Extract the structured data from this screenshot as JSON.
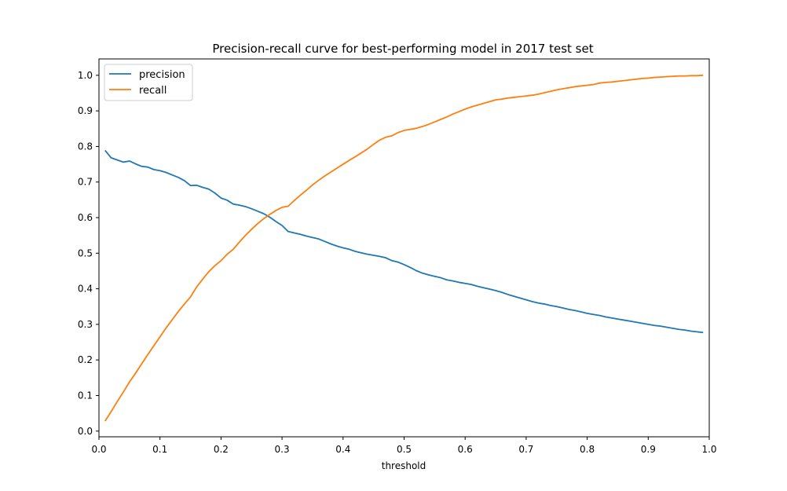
{
  "chart_data": {
    "type": "line",
    "title": "Precision-recall curve for best-performing model in 2017 test set",
    "xlabel": "threshold",
    "ylabel": "",
    "xlim": [
      0.0,
      1.0
    ],
    "ylim": [
      -0.016,
      1.046
    ],
    "x_ticks": [
      "0.0",
      "0.1",
      "0.2",
      "0.3",
      "0.4",
      "0.5",
      "0.6",
      "0.7",
      "0.8",
      "0.9",
      "1.0"
    ],
    "y_ticks": [
      "0.0",
      "0.1",
      "0.2",
      "0.3",
      "0.4",
      "0.5",
      "0.6",
      "0.7",
      "0.8",
      "0.9",
      "1.0"
    ],
    "grid": false,
    "legend_position": "top-left",
    "series": [
      {
        "name": "precision",
        "color": "#1f77b4",
        "x": [
          0.01,
          0.02,
          0.03,
          0.04,
          0.05,
          0.06,
          0.07,
          0.08,
          0.09,
          0.1,
          0.11,
          0.12,
          0.13,
          0.14,
          0.15,
          0.16,
          0.17,
          0.18,
          0.19,
          0.2,
          0.21,
          0.22,
          0.23,
          0.24,
          0.25,
          0.26,
          0.27,
          0.28,
          0.29,
          0.3,
          0.31,
          0.32,
          0.33,
          0.34,
          0.35,
          0.36,
          0.37,
          0.38,
          0.39,
          0.4,
          0.41,
          0.42,
          0.43,
          0.44,
          0.45,
          0.46,
          0.47,
          0.48,
          0.49,
          0.5,
          0.51,
          0.52,
          0.53,
          0.54,
          0.55,
          0.56,
          0.57,
          0.58,
          0.59,
          0.6,
          0.61,
          0.62,
          0.63,
          0.64,
          0.65,
          0.66,
          0.67,
          0.68,
          0.69,
          0.7,
          0.71,
          0.72,
          0.73,
          0.74,
          0.75,
          0.76,
          0.77,
          0.78,
          0.79,
          0.8,
          0.81,
          0.82,
          0.83,
          0.84,
          0.85,
          0.86,
          0.87,
          0.88,
          0.89,
          0.9,
          0.91,
          0.92,
          0.93,
          0.94,
          0.95,
          0.96,
          0.97,
          0.98,
          0.99
        ],
        "values": [
          0.789,
          0.768,
          0.762,
          0.756,
          0.759,
          0.751,
          0.744,
          0.742,
          0.735,
          0.732,
          0.727,
          0.72,
          0.713,
          0.704,
          0.69,
          0.691,
          0.685,
          0.68,
          0.669,
          0.655,
          0.649,
          0.638,
          0.635,
          0.631,
          0.625,
          0.618,
          0.611,
          0.601,
          0.589,
          0.578,
          0.561,
          0.557,
          0.553,
          0.548,
          0.544,
          0.54,
          0.533,
          0.526,
          0.52,
          0.515,
          0.511,
          0.505,
          0.501,
          0.497,
          0.494,
          0.491,
          0.487,
          0.479,
          0.475,
          0.468,
          0.46,
          0.451,
          0.444,
          0.439,
          0.435,
          0.431,
          0.425,
          0.422,
          0.418,
          0.415,
          0.412,
          0.407,
          0.403,
          0.399,
          0.395,
          0.39,
          0.384,
          0.379,
          0.374,
          0.369,
          0.364,
          0.36,
          0.357,
          0.353,
          0.35,
          0.346,
          0.342,
          0.339,
          0.335,
          0.331,
          0.328,
          0.325,
          0.321,
          0.318,
          0.315,
          0.312,
          0.309,
          0.306,
          0.303,
          0.3,
          0.297,
          0.295,
          0.292,
          0.289,
          0.286,
          0.284,
          0.281,
          0.279,
          0.277
        ]
      },
      {
        "name": "recall",
        "color": "#ff7f0e",
        "x": [
          0.01,
          0.02,
          0.03,
          0.04,
          0.05,
          0.06,
          0.07,
          0.08,
          0.09,
          0.1,
          0.11,
          0.12,
          0.13,
          0.14,
          0.15,
          0.16,
          0.17,
          0.18,
          0.19,
          0.2,
          0.21,
          0.22,
          0.23,
          0.24,
          0.25,
          0.26,
          0.27,
          0.28,
          0.29,
          0.3,
          0.31,
          0.32,
          0.33,
          0.34,
          0.35,
          0.36,
          0.37,
          0.38,
          0.39,
          0.4,
          0.41,
          0.42,
          0.43,
          0.44,
          0.45,
          0.46,
          0.47,
          0.48,
          0.49,
          0.5,
          0.51,
          0.52,
          0.53,
          0.54,
          0.55,
          0.56,
          0.57,
          0.58,
          0.59,
          0.6,
          0.61,
          0.62,
          0.63,
          0.64,
          0.65,
          0.66,
          0.67,
          0.68,
          0.69,
          0.7,
          0.71,
          0.72,
          0.73,
          0.74,
          0.75,
          0.76,
          0.77,
          0.78,
          0.79,
          0.8,
          0.81,
          0.82,
          0.83,
          0.84,
          0.85,
          0.86,
          0.87,
          0.88,
          0.89,
          0.9,
          0.91,
          0.92,
          0.93,
          0.94,
          0.95,
          0.96,
          0.97,
          0.98,
          0.99
        ],
        "values": [
          0.028,
          0.055,
          0.083,
          0.11,
          0.138,
          0.163,
          0.189,
          0.215,
          0.24,
          0.265,
          0.29,
          0.313,
          0.336,
          0.357,
          0.377,
          0.405,
          0.427,
          0.448,
          0.465,
          0.479,
          0.497,
          0.511,
          0.531,
          0.55,
          0.567,
          0.583,
          0.597,
          0.609,
          0.62,
          0.629,
          0.632,
          0.648,
          0.663,
          0.677,
          0.692,
          0.705,
          0.717,
          0.728,
          0.739,
          0.75,
          0.761,
          0.771,
          0.782,
          0.793,
          0.806,
          0.818,
          0.826,
          0.83,
          0.839,
          0.845,
          0.848,
          0.851,
          0.856,
          0.862,
          0.869,
          0.876,
          0.883,
          0.891,
          0.898,
          0.905,
          0.911,
          0.916,
          0.921,
          0.926,
          0.931,
          0.933,
          0.936,
          0.938,
          0.94,
          0.942,
          0.944,
          0.947,
          0.951,
          0.955,
          0.959,
          0.962,
          0.965,
          0.968,
          0.97,
          0.972,
          0.974,
          0.978,
          0.98,
          0.981,
          0.983,
          0.985,
          0.987,
          0.989,
          0.991,
          0.992,
          0.994,
          0.995,
          0.996,
          0.997,
          0.998,
          0.998,
          0.999,
          0.999,
          1.0
        ]
      }
    ]
  }
}
